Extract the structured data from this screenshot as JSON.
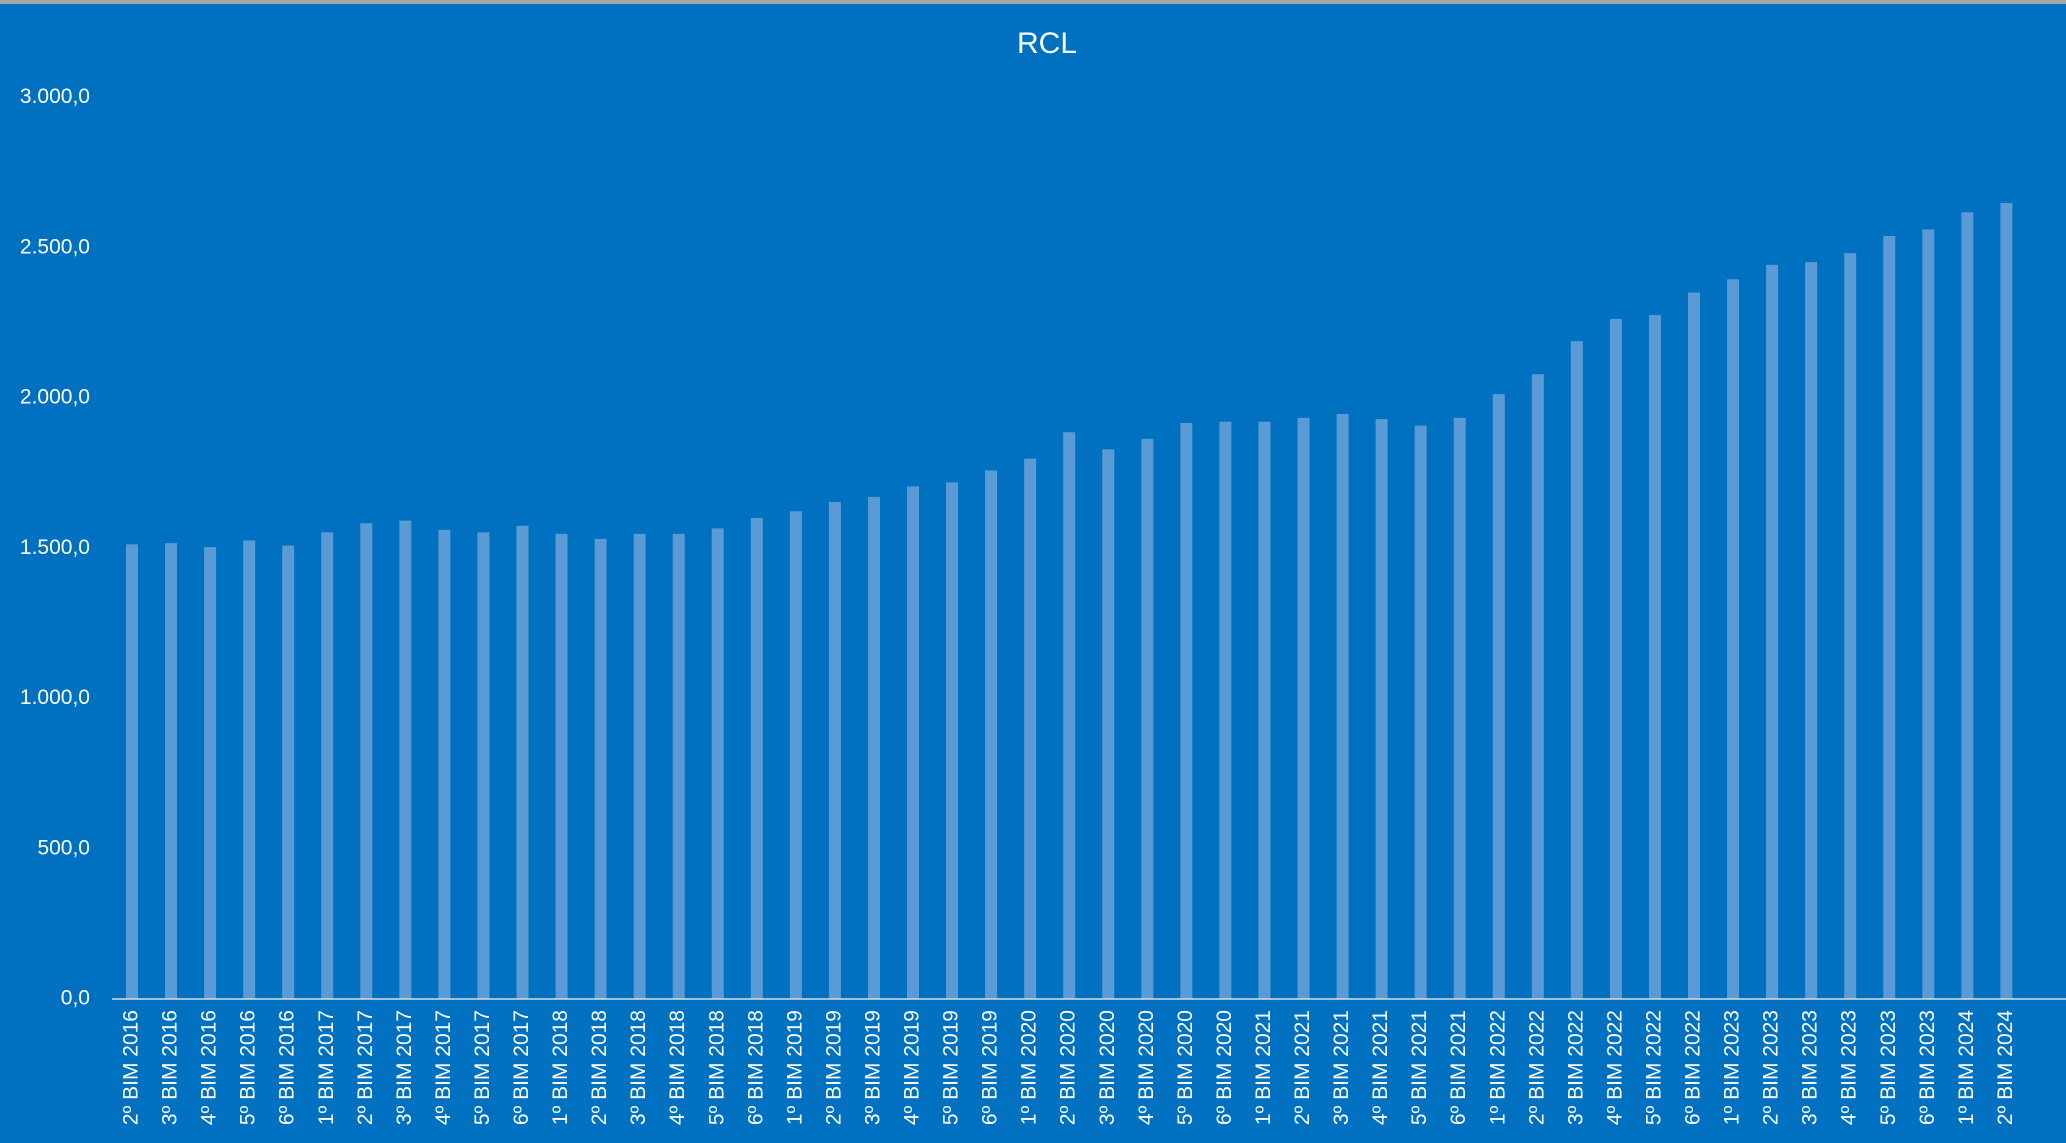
{
  "chart_data": {
    "type": "bar",
    "title": "RCL",
    "categories": [
      "2º BIM 2016",
      "3º BIM 2016",
      "4º BIM 2016",
      "5º BIM 2016",
      "6º BIM 2016",
      "1º BIM 2017",
      "2º BIM 2017",
      "3º BIM 2017",
      "4º BIM 2017",
      "5º BIM 2017",
      "6º BIM 2017",
      "1º BIM 2018",
      "2º BIM 2018",
      "3º BIM 2018",
      "4º BIM 2018",
      "5º BIM 2018",
      "6º BIM 2018",
      "1º BIM 2019",
      "2º BIM 2019",
      "3º BIM 2019",
      "4º BIM 2019",
      "5º BIM 2019",
      "6º BIM 2019",
      "1º BIM 2020",
      "2º BIM 2020",
      "3º BIM 2020",
      "4º BIM 2020",
      "5º BIM 2020",
      "6º BIM 2020",
      "1º BIM 2021",
      "2º BIM 2021",
      "3º BIM 2021",
      "4º BIM 2021",
      "5º BIM 2021",
      "6º BIM 2021",
      "1º BIM 2022",
      "2º BIM 2022",
      "3º BIM 2022",
      "4º BIM 2022",
      "5º BIM 2022",
      "6º BIM 2022",
      "1º BIM 2023",
      "2º BIM 2023",
      "3º BIM 2023",
      "4º BIM 2023",
      "5º BIM 2023",
      "6º BIM 2023",
      "1º BIM 2024",
      "2º BIM 2024"
    ],
    "values": [
      1513,
      1517,
      1504,
      1526,
      1509,
      1553,
      1583,
      1592,
      1561,
      1553,
      1575,
      1548,
      1531,
      1548,
      1548,
      1566,
      1601,
      1623,
      1654,
      1671,
      1706,
      1719,
      1759,
      1798,
      1886,
      1829,
      1864,
      1917,
      1921,
      1921,
      1934,
      1947,
      1930,
      1908,
      1934,
      2013,
      2079,
      2189,
      2263,
      2276,
      2351,
      2395,
      2443,
      2452,
      2482,
      2539,
      2561,
      2618,
      2649
    ],
    "color": "#5b9bd5",
    "ylim": [
      0,
      3000
    ],
    "yticks": [
      {
        "value": 0,
        "label": "0,0"
      },
      {
        "value": 500,
        "label": "500,0"
      },
      {
        "value": 1000,
        "label": "1.000,0"
      },
      {
        "value": 1500,
        "label": "1.500,0"
      },
      {
        "value": 2000,
        "label": "2.000,0"
      },
      {
        "value": 2500,
        "label": "2.500,0"
      },
      {
        "value": 3000,
        "label": "3.000,0"
      }
    ]
  }
}
